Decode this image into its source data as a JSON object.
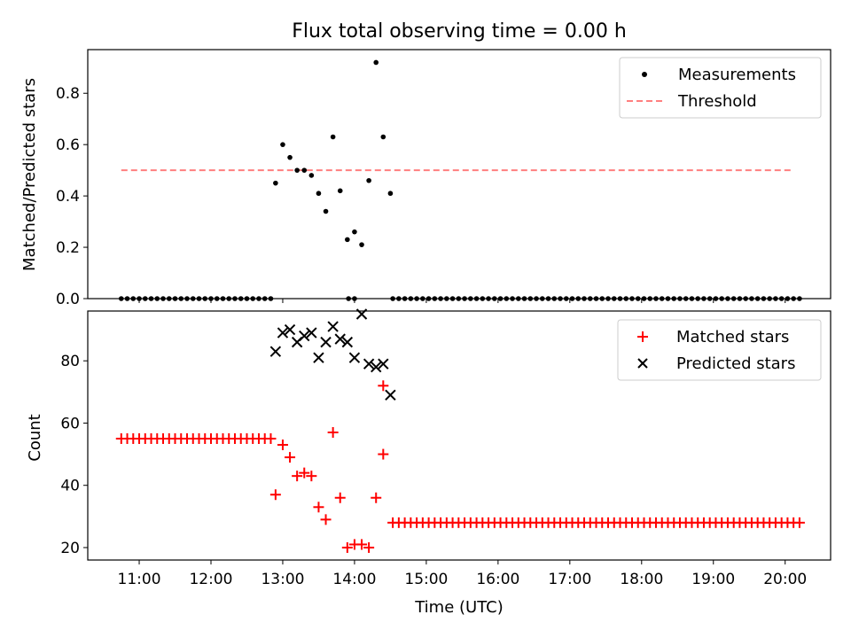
{
  "chart_data": [
    {
      "type": "scatter",
      "title": "Flux total observing time = 0.00 h",
      "ylabel": "Matched/Predicted stars",
      "xlim": [
        "10:17",
        "20:38"
      ],
      "ylim": [
        0,
        0.97
      ],
      "yticks": [
        "0.0",
        "0.2",
        "0.4",
        "0.6",
        "0.8"
      ],
      "legend_position": "upper right",
      "series": [
        {
          "name": "Measurements",
          "marker": "dot",
          "color": "#000000",
          "x": [
            "12:54",
            "13:00",
            "13:06",
            "13:12",
            "13:18",
            "13:24",
            "13:30",
            "13:36",
            "13:42",
            "13:48",
            "13:54",
            "14:00",
            "14:06",
            "14:12",
            "14:18",
            "14:24",
            "14:30"
          ],
          "y": [
            0.45,
            0.6,
            0.55,
            0.5,
            0.5,
            0.48,
            0.41,
            0.34,
            0.63,
            0.42,
            0.23,
            0.26,
            0.21,
            0.46,
            0.92,
            0.63,
            0.41
          ]
        },
        {
          "name": "Threshold",
          "style": "dashed-line",
          "color": "#ff7f7f",
          "x": [
            "10:45",
            "20:05"
          ],
          "y": [
            0.5,
            0.5
          ]
        }
      ],
      "zero_run_1": {
        "start": "10:45",
        "end": "12:51",
        "step_min": 5,
        "y": 0
      },
      "zero_pair": {
        "x": [
          "13:55",
          "14:00"
        ],
        "y": 0
      },
      "zero_run_2": {
        "start": "14:32",
        "end": "20:12",
        "step_min": 5,
        "y": 0
      }
    },
    {
      "type": "scatter",
      "xlabel": "Time (UTC)",
      "ylabel": "Count",
      "xlim": [
        "10:17",
        "20:38"
      ],
      "ylim": [
        16,
        96
      ],
      "yticks": [
        "20",
        "40",
        "60",
        "80"
      ],
      "xticks": [
        "11:00",
        "12:00",
        "13:00",
        "14:00",
        "15:00",
        "16:00",
        "17:00",
        "18:00",
        "19:00",
        "20:00"
      ],
      "legend_position": "upper right",
      "series": [
        {
          "name": "Matched stars",
          "marker": "plus",
          "color": "#ff0000",
          "runs": [
            {
              "start": "10:45",
              "end": "12:51",
              "step_min": 5,
              "y": 55
            },
            {
              "start": "14:32",
              "end": "20:12",
              "step_min": 5,
              "y": 28
            }
          ],
          "x": [
            "12:54",
            "13:00",
            "13:06",
            "13:12",
            "13:18",
            "13:24",
            "13:30",
            "13:36",
            "13:42",
            "13:48",
            "13:54",
            "14:00",
            "14:06",
            "14:12",
            "14:18",
            "14:24"
          ],
          "y": [
            37,
            53,
            49,
            43,
            44,
            43,
            33,
            29,
            57,
            36,
            20,
            21,
            21,
            20,
            36,
            72
          ]
        },
        {
          "name": "Predicted stars",
          "marker": "x",
          "color": "#000000",
          "x": [
            "12:54",
            "13:00",
            "13:06",
            "13:12",
            "13:18",
            "13:24",
            "13:30",
            "13:36",
            "13:42",
            "13:48",
            "13:54",
            "14:00",
            "14:06",
            "14:12",
            "14:18",
            "14:24",
            "14:30"
          ],
          "y": [
            83,
            89,
            90,
            86,
            88,
            89,
            81,
            86,
            91,
            87,
            86,
            81,
            95,
            79,
            78,
            79,
            69
          ]
        }
      ],
      "extra_matched": {
        "x": [
          "14:24"
        ],
        "y": [
          50
        ]
      }
    }
  ]
}
